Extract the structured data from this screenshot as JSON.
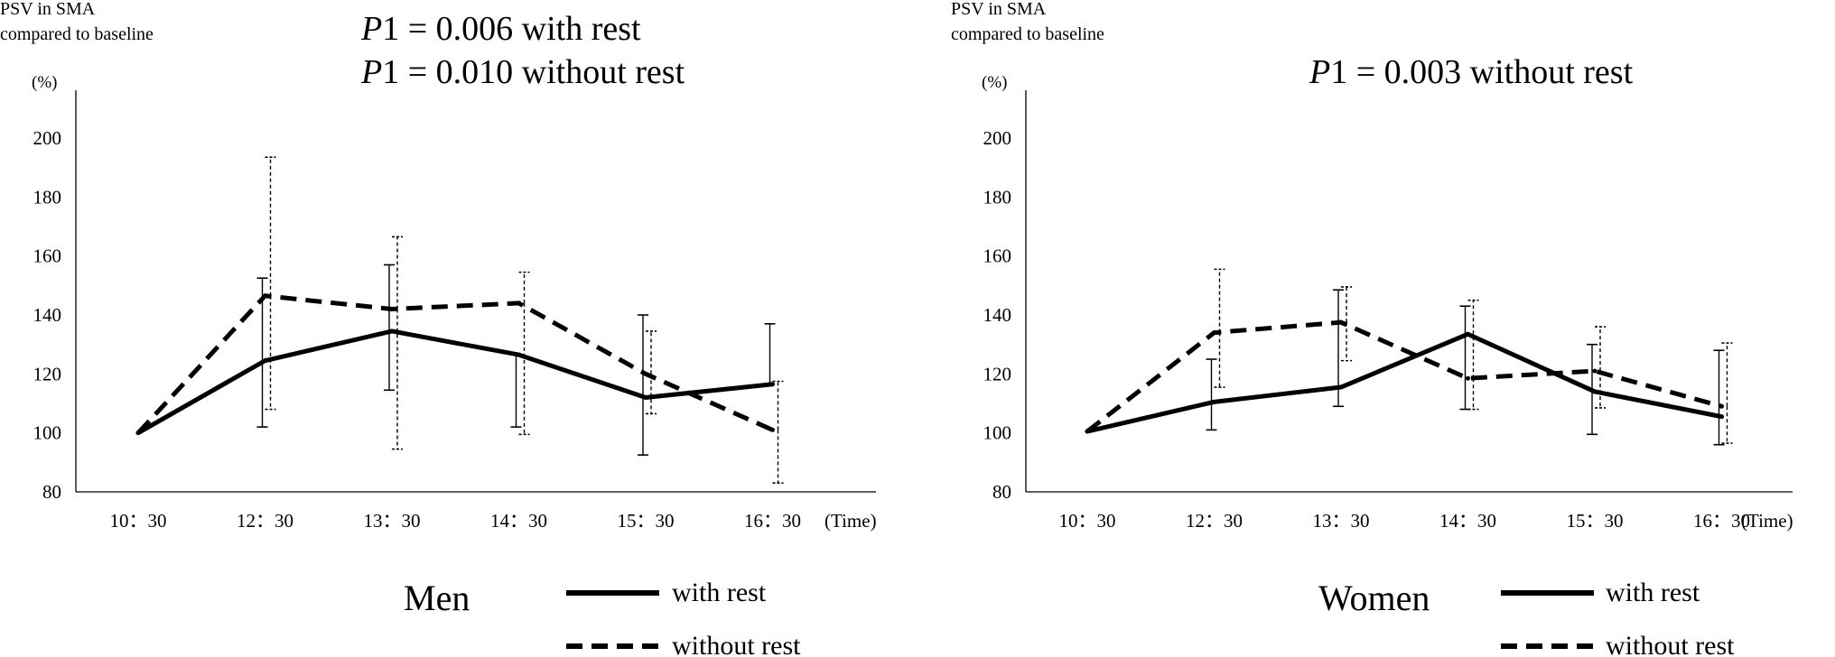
{
  "chart_data": [
    {
      "type": "line",
      "ylabel_line1": "PSV in SMA",
      "ylabel_line2": "compared to baseline",
      "y_unit": "(%)",
      "x_unit": "(Time)",
      "ylim": [
        80,
        200
      ],
      "yticks": [
        80,
        100,
        120,
        140,
        160,
        180,
        200
      ],
      "categories": [
        "10：30",
        "12：30",
        "13：30",
        "14：30",
        "15：30",
        "16：30"
      ],
      "annotations": [
        {
          "var": "P",
          "sub": "1",
          "rest": " = 0.006 with rest"
        },
        {
          "var": "P",
          "sub": "1",
          "rest": " = 0.010 without rest"
        }
      ],
      "group_label": "Men",
      "series": [
        {
          "name": "with rest",
          "style": "solid",
          "values": [
            100,
            124.5,
            134.5,
            126.5,
            112,
            116.5
          ],
          "lower": [
            null,
            102,
            114.5,
            102,
            92.5,
            null
          ],
          "upper": [
            null,
            152.5,
            157,
            null,
            140,
            137
          ]
        },
        {
          "name": "without rest",
          "style": "dashed",
          "values": [
            100,
            146.5,
            142,
            144,
            120,
            101
          ],
          "lower": [
            null,
            108,
            94.5,
            99.5,
            106.5,
            83
          ],
          "upper": [
            null,
            193.5,
            166.5,
            154.5,
            134.5,
            117.5
          ]
        }
      ]
    },
    {
      "type": "line",
      "ylabel_line1": "PSV in SMA",
      "ylabel_line2": "compared to baseline",
      "y_unit": "(%)",
      "x_unit": "(Time)",
      "ylim": [
        80,
        200
      ],
      "yticks": [
        80,
        100,
        120,
        140,
        160,
        180,
        200
      ],
      "categories": [
        "10：30",
        "12：30",
        "13：30",
        "14：30",
        "15：30",
        "16：30"
      ],
      "annotations": [
        {
          "var": "P",
          "sub": "1",
          "rest": " = 0.003 without rest"
        }
      ],
      "group_label": "Women",
      "series": [
        {
          "name": "with rest",
          "style": "solid",
          "values": [
            100.5,
            110.5,
            115.5,
            133.5,
            114,
            105.5
          ],
          "lower": [
            null,
            101,
            109,
            108,
            99.5,
            96
          ],
          "upper": [
            null,
            125,
            148.5,
            143,
            130,
            128
          ]
        },
        {
          "name": "without rest",
          "style": "dashed",
          "values": [
            100.5,
            134,
            137.5,
            118.5,
            121,
            109
          ],
          "lower": [
            null,
            115.5,
            124.5,
            108,
            108.5,
            96.5
          ],
          "upper": [
            null,
            155.5,
            149.5,
            145,
            136,
            130.5
          ]
        }
      ]
    }
  ]
}
